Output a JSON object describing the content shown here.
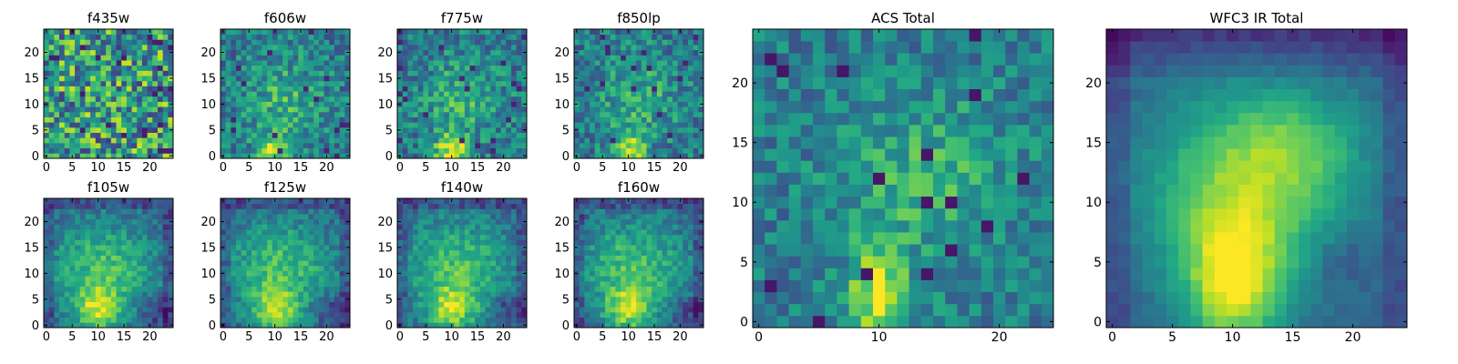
{
  "colormap": "viridis",
  "chart_data": [
    {
      "type": "heatmap",
      "title": "f435w",
      "grid_size": 25,
      "xticks": [
        0,
        5,
        10,
        15,
        20
      ],
      "yticks": [
        0,
        5,
        10,
        15,
        20
      ],
      "xlim": [
        -0.5,
        24.5
      ],
      "ylim": [
        -0.5,
        24.5
      ],
      "pattern": "noise"
    },
    {
      "type": "heatmap",
      "title": "f606w",
      "grid_size": 25,
      "xticks": [
        0,
        5,
        10,
        15,
        20
      ],
      "yticks": [
        0,
        5,
        10,
        15,
        20
      ],
      "xlim": [
        -0.5,
        24.5
      ],
      "ylim": [
        -0.5,
        24.5
      ],
      "pattern": "optical"
    },
    {
      "type": "heatmap",
      "title": "f775w",
      "grid_size": 25,
      "xticks": [
        0,
        5,
        10,
        15,
        20
      ],
      "yticks": [
        0,
        5,
        10,
        15,
        20
      ],
      "xlim": [
        -0.5,
        24.5
      ],
      "ylim": [
        -0.5,
        24.5
      ],
      "pattern": "optical"
    },
    {
      "type": "heatmap",
      "title": "f850lp",
      "grid_size": 25,
      "xticks": [
        0,
        5,
        10,
        15,
        20
      ],
      "yticks": [
        0,
        5,
        10,
        15,
        20
      ],
      "xlim": [
        -0.5,
        24.5
      ],
      "ylim": [
        -0.5,
        24.5
      ],
      "pattern": "optical"
    },
    {
      "type": "heatmap",
      "title": "f105w",
      "grid_size": 25,
      "xticks": [
        0,
        5,
        10,
        15,
        20
      ],
      "yticks": [
        0,
        5,
        10,
        15,
        20
      ],
      "xlim": [
        -0.5,
        24.5
      ],
      "ylim": [
        -0.5,
        24.5
      ],
      "pattern": "ir"
    },
    {
      "type": "heatmap",
      "title": "f125w",
      "grid_size": 25,
      "xticks": [
        0,
        5,
        10,
        15,
        20
      ],
      "yticks": [
        0,
        5,
        10,
        15,
        20
      ],
      "xlim": [
        -0.5,
        24.5
      ],
      "ylim": [
        -0.5,
        24.5
      ],
      "pattern": "ir"
    },
    {
      "type": "heatmap",
      "title": "f140w",
      "grid_size": 25,
      "xticks": [
        0,
        5,
        10,
        15,
        20
      ],
      "yticks": [
        0,
        5,
        10,
        15,
        20
      ],
      "xlim": [
        -0.5,
        24.5
      ],
      "ylim": [
        -0.5,
        24.5
      ],
      "pattern": "ir"
    },
    {
      "type": "heatmap",
      "title": "f160w",
      "grid_size": 25,
      "xticks": [
        0,
        5,
        10,
        15,
        20
      ],
      "yticks": [
        0,
        5,
        10,
        15,
        20
      ],
      "xlim": [
        -0.5,
        24.5
      ],
      "ylim": [
        -0.5,
        24.5
      ],
      "pattern": "ir"
    },
    {
      "type": "heatmap",
      "title": "ACS Total",
      "grid_size": 25,
      "xticks": [
        0,
        10,
        20
      ],
      "yticks": [
        0,
        5,
        10,
        15,
        20
      ],
      "xlim": [
        -0.5,
        24.5
      ],
      "ylim": [
        -0.5,
        24.5
      ],
      "pattern": "acs"
    },
    {
      "type": "heatmap",
      "title": "WFC3 IR Total",
      "grid_size": 25,
      "xticks": [
        0,
        5,
        10,
        15,
        20
      ],
      "yticks": [
        0,
        5,
        10,
        15,
        20
      ],
      "xlim": [
        -0.5,
        24.5
      ],
      "ylim": [
        -0.5,
        24.5
      ],
      "pattern": "wfc3"
    }
  ]
}
